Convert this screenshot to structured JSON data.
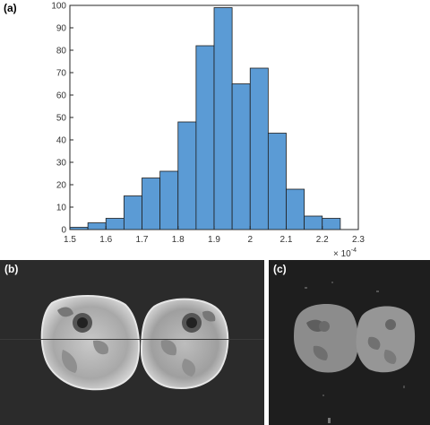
{
  "panels": {
    "a_label": "(a)",
    "b_label": "(b)",
    "c_label": "(c)"
  },
  "chart_data": {
    "type": "bar",
    "bin_edges": [
      1.5,
      1.55,
      1.6,
      1.65,
      1.7,
      1.75,
      1.8,
      1.85,
      1.9,
      1.95,
      2.0,
      2.05,
      2.1,
      2.15,
      2.2,
      2.25
    ],
    "values": [
      1,
      3,
      5,
      15,
      23,
      26,
      48,
      82,
      99,
      65,
      72,
      43,
      18,
      6,
      5
    ],
    "x_ticks": [
      "1.5",
      "1.6",
      "1.7",
      "1.8",
      "1.9",
      "2",
      "2.1",
      "2.2",
      "2.3"
    ],
    "y_ticks": [
      "0",
      "10",
      "20",
      "30",
      "40",
      "50",
      "60",
      "70",
      "80",
      "90",
      "100"
    ],
    "xlim": [
      1.5,
      2.3
    ],
    "ylim": [
      0,
      100
    ],
    "x_multiplier_base": "× 10",
    "x_multiplier_exp": "-4",
    "bar_color": "#5b9bd5",
    "bar_edge_color": "#1f1f1f",
    "title": "",
    "xlabel": "",
    "ylabel": ""
  }
}
